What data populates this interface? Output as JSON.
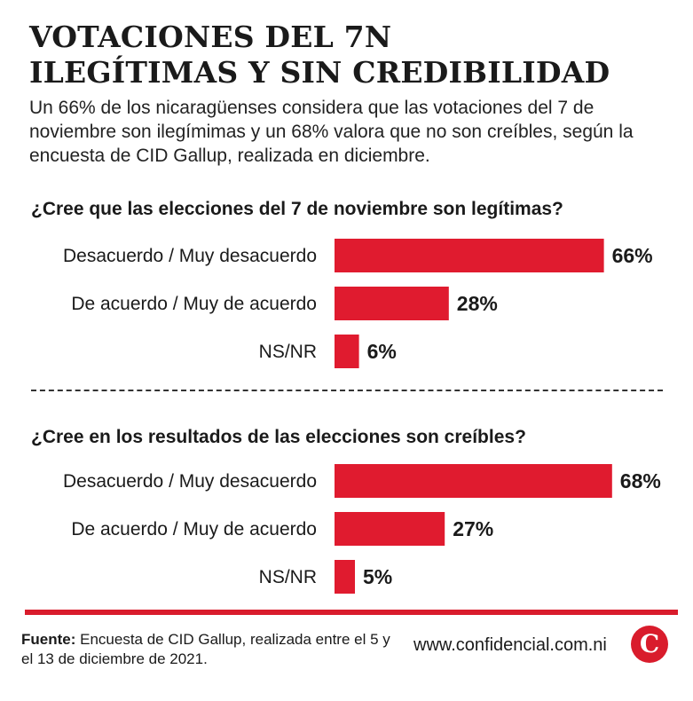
{
  "header": {
    "title_line1": "VOTACIONES DEL 7N",
    "title_line2": "ILEGÍTIMAS Y SIN CREDIBILIDAD",
    "subtitle": "Un 66% de los nicaragüenses considera que las votaciones del 7 de noviembre son ilegímimas y un 68% valora que no son creíbles, según la encuesta de CID Gallup, realizada en diciembre."
  },
  "colors": {
    "bar": "#e01b2f",
    "rule": "#d91c2c"
  },
  "chart_data": [
    {
      "type": "bar",
      "orientation": "horizontal",
      "title": "¿Cree que las elecciones del 7 de noviembre son legítimas?",
      "categories": [
        "Desacuerdo / Muy desacuerdo",
        "De acuerdo / Muy de acuerdo",
        "NS/NR"
      ],
      "values": [
        66,
        28,
        6
      ],
      "value_labels": [
        "66%",
        "28%",
        "6%"
      ],
      "unit": "%",
      "xlim": [
        0,
        100
      ],
      "grid": false
    },
    {
      "type": "bar",
      "orientation": "horizontal",
      "title": "¿Cree en los resultados de las elecciones son creíbles?",
      "categories": [
        "Desacuerdo / Muy desacuerdo",
        "De acuerdo / Muy de acuerdo",
        "NS/NR"
      ],
      "values": [
        68,
        27,
        5
      ],
      "value_labels": [
        "68%",
        "27%",
        "5%"
      ],
      "unit": "%",
      "xlim": [
        0,
        100
      ],
      "grid": false
    }
  ],
  "footer": {
    "source_label": "Fuente:",
    "source_text": "Encuesta de CID Gallup, realizada entre el 5 y el 13 de diciembre de 2021.",
    "website": "www.confidencial.com.ni",
    "logo_letter": "C"
  }
}
